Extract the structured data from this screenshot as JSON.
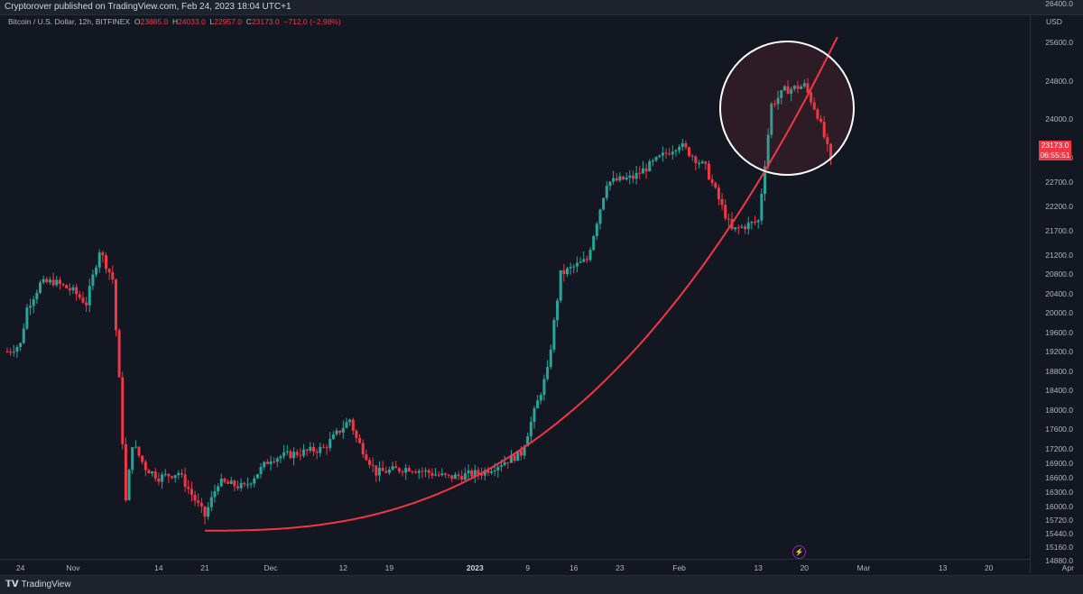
{
  "header": {
    "published": "Cryptorover published on TradingView.com, Feb 24, 2023 18:04 UTC+1"
  },
  "legend": {
    "symbol": "Bitcoin / U.S. Dollar, 12h, BITFINEX",
    "o_label": "O",
    "o": "23885.0",
    "h_label": "H",
    "h": "24033.0",
    "l_label": "L",
    "l": "22957.0",
    "c_label": "C",
    "c": "23173.0",
    "change": "−712.0 (−2.98%)"
  },
  "price_axis": {
    "unit": "USD",
    "current_price": "23173.0",
    "countdown": "06:55:51"
  },
  "footer": {
    "brand": "TradingView"
  },
  "colors": {
    "up": "#26a69a",
    "down": "#f23645",
    "background": "#131722",
    "curve": "#f23645",
    "circle": "#ffffff"
  },
  "chart_data": {
    "type": "candlestick",
    "title": "Bitcoin / U.S. Dollar, 12h, BITFINEX",
    "ylim": [
      14620,
      26170
    ],
    "y_ticks": [
      14880,
      15160,
      15440,
      15720,
      16000,
      16300,
      16600,
      16900,
      17200,
      17600,
      18000,
      18400,
      18800,
      19200,
      19600,
      20000,
      20400,
      20800,
      21200,
      21700,
      22200,
      22700,
      23200,
      24000,
      24800,
      25600,
      26400
    ],
    "y_tick_labels": [
      "14880.0",
      "15160.0",
      "15440.0",
      "15720.0",
      "16000.0",
      "16300.0",
      "16600.0",
      "16900.0",
      "17200.0",
      "17600.0",
      "18000.0",
      "18400.0",
      "18800.0",
      "19200.0",
      "19600.0",
      "20000.0",
      "20400.0",
      "20800.0",
      "21200.0",
      "21700.0",
      "22200.0",
      "22700.0",
      "23200.0",
      "24000.0",
      "24800.0",
      "25600.0",
      "26400.0"
    ],
    "x_ticks": [
      "24",
      "Nov",
      "14",
      "21",
      "Dec",
      "12",
      "19",
      "2023",
      "9",
      "16",
      "23",
      "Feb",
      "13",
      "20",
      "Mar",
      "13",
      "20",
      "Apr"
    ],
    "series_close": [
      {
        "t": "Oct 22",
        "c": 19200
      },
      {
        "t": "Oct 24",
        "c": 19350
      },
      {
        "t": "Oct 25",
        "c": 20100
      },
      {
        "t": "Oct 27",
        "c": 20600
      },
      {
        "t": "Oct 29",
        "c": 20650
      },
      {
        "t": "Nov 1",
        "c": 20450
      },
      {
        "t": "Nov 3",
        "c": 20200
      },
      {
        "t": "Nov 5",
        "c": 21300
      },
      {
        "t": "Nov 7",
        "c": 20700
      },
      {
        "t": "Nov 8",
        "c": 18600
      },
      {
        "t": "Nov 9",
        "c": 16100
      },
      {
        "t": "Nov 10",
        "c": 17300
      },
      {
        "t": "Nov 12",
        "c": 16800
      },
      {
        "t": "Nov 14",
        "c": 16600
      },
      {
        "t": "Nov 17",
        "c": 16700
      },
      {
        "t": "Nov 21",
        "c": 15800
      },
      {
        "t": "Nov 23",
        "c": 16500
      },
      {
        "t": "Nov 27",
        "c": 16400
      },
      {
        "t": "Dec 1",
        "c": 17000
      },
      {
        "t": "Dec 5",
        "c": 17100
      },
      {
        "t": "Dec 9",
        "c": 17200
      },
      {
        "t": "Dec 13",
        "c": 17800
      },
      {
        "t": "Dec 14",
        "c": 17400
      },
      {
        "t": "Dec 17",
        "c": 16700
      },
      {
        "t": "Dec 22",
        "c": 16800
      },
      {
        "t": "Dec 28",
        "c": 16600
      },
      {
        "t": "Jan 2",
        "c": 16700
      },
      {
        "t": "Jan 8",
        "c": 17100
      },
      {
        "t": "Jan 12",
        "c": 18800
      },
      {
        "t": "Jan 14",
        "c": 20800
      },
      {
        "t": "Jan 18",
        "c": 21100
      },
      {
        "t": "Jan 21",
        "c": 22700
      },
      {
        "t": "Jan 25",
        "c": 22800
      },
      {
        "t": "Feb 1",
        "c": 23500
      },
      {
        "t": "Feb 5",
        "c": 23000
      },
      {
        "t": "Feb 9",
        "c": 21700
      },
      {
        "t": "Feb 13",
        "c": 21900
      },
      {
        "t": "Feb 15",
        "c": 24300
      },
      {
        "t": "Feb 17",
        "c": 24600
      },
      {
        "t": "Feb 20",
        "c": 24700
      },
      {
        "t": "Feb 22",
        "c": 24100
      },
      {
        "t": "Feb 24",
        "c": 23173
      }
    ],
    "annotations": [
      {
        "type": "curve",
        "description": "parabolic support curve from Nov 21 low rising to Feb 25"
      },
      {
        "type": "circle",
        "description": "highlighted area around Feb 16–24 price action"
      }
    ]
  }
}
